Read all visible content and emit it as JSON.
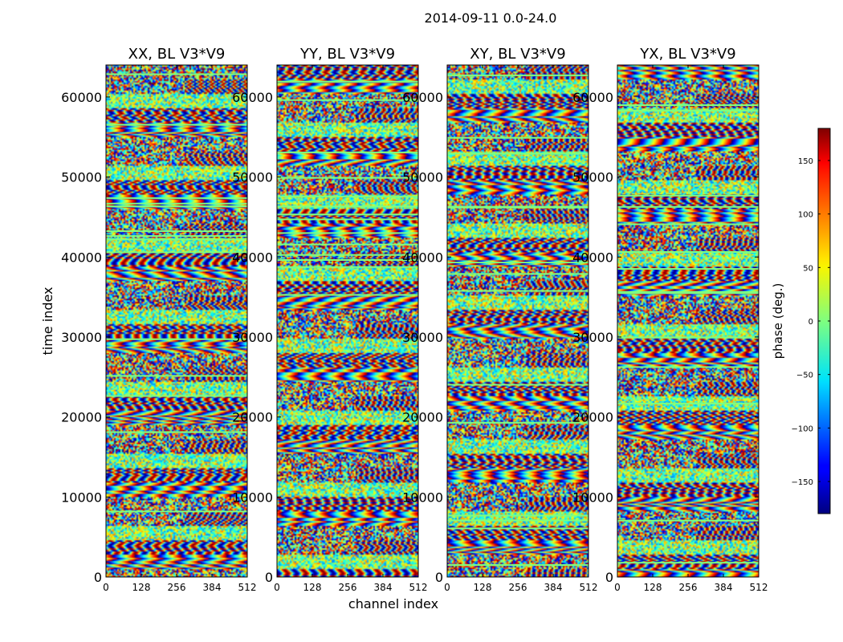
{
  "figure_title": "2014-09-11 0.0-24.0",
  "colors": {
    "colormap": "jet",
    "frame": "#000000",
    "background": "#ffffff",
    "band": "#7fff7f"
  },
  "chart_data": [
    {
      "type": "heatmap",
      "title": "XX, BL V3*V9",
      "xlabel": "",
      "ylabel": "time index",
      "xlim": [
        0,
        512
      ],
      "ylim": [
        0,
        64000
      ],
      "xticks": [
        "0",
        "128",
        "256",
        "384",
        "512"
      ],
      "yticks": [
        "0",
        "10000",
        "20000",
        "30000",
        "40000",
        "50000",
        "60000"
      ]
    },
    {
      "type": "heatmap",
      "title": "YY, BL V3*V9",
      "xlabel": "channel index",
      "ylabel": "",
      "xlim": [
        0,
        512
      ],
      "ylim": [
        0,
        64000
      ],
      "xticks": [
        "0",
        "128",
        "256",
        "384",
        "512"
      ],
      "yticks": [
        "0",
        "10000",
        "20000",
        "30000",
        "40000",
        "50000",
        "60000"
      ]
    },
    {
      "type": "heatmap",
      "title": "XY, BL V3*V9",
      "xlabel": "",
      "ylabel": "",
      "xlim": [
        0,
        512
      ],
      "ylim": [
        0,
        64000
      ],
      "xticks": [
        "0",
        "128",
        "256",
        "384",
        "512"
      ],
      "yticks": [
        "0",
        "10000",
        "20000",
        "30000",
        "40000",
        "50000",
        "60000"
      ]
    },
    {
      "type": "heatmap",
      "title": "YX, BL V3*V9",
      "xlabel": "",
      "ylabel": "",
      "xlim": [
        0,
        512
      ],
      "ylim": [
        0,
        64000
      ],
      "xticks": [
        "0",
        "128",
        "256",
        "384",
        "512"
      ],
      "yticks": [
        "0",
        "10000",
        "20000",
        "30000",
        "40000",
        "50000",
        "60000"
      ]
    }
  ],
  "colorbar": {
    "label": "phase (deg.)",
    "range": [
      -180,
      180
    ],
    "ticks": [
      150,
      100,
      50,
      0,
      -50,
      -100,
      -150
    ],
    "tick_labels": [
      "150",
      "100",
      "50",
      "0",
      "−50",
      "−100",
      "−150"
    ]
  }
}
